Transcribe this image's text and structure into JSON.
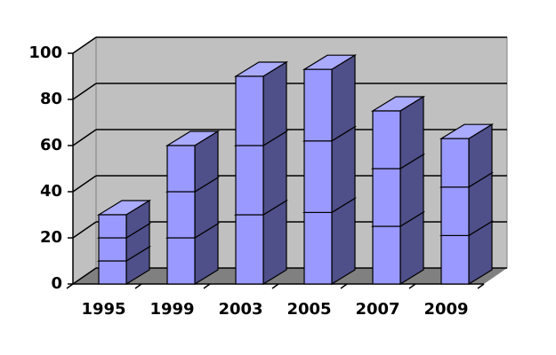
{
  "chart_data": {
    "type": "bar3d-stacked",
    "categories": [
      "1995",
      "1999",
      "2003",
      "2005",
      "2007",
      "2009"
    ],
    "series": [
      {
        "color": "#9999ff",
        "values": [
          10,
          20,
          30,
          31,
          25,
          21
        ]
      },
      {
        "color": "#9999ff",
        "values": [
          10,
          20,
          30,
          31,
          25,
          21
        ]
      },
      {
        "color": "#9999ff",
        "values": [
          10,
          20,
          30,
          31,
          25,
          21
        ]
      }
    ],
    "ylim": [
      0,
      100
    ],
    "yticks": [
      0,
      20,
      40,
      60,
      80,
      100
    ],
    "grid": true
  }
}
